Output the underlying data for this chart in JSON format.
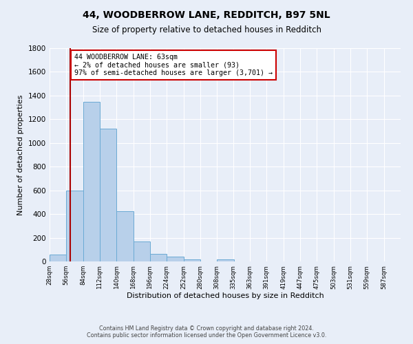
{
  "title": "44, WOODBERROW LANE, REDDITCH, B97 5NL",
  "subtitle": "Size of property relative to detached houses in Redditch",
  "xlabel": "Distribution of detached houses by size in Redditch",
  "ylabel": "Number of detached properties",
  "bin_labels": [
    "28sqm",
    "56sqm",
    "84sqm",
    "112sqm",
    "140sqm",
    "168sqm",
    "196sqm",
    "224sqm",
    "252sqm",
    "280sqm",
    "308sqm",
    "335sqm",
    "363sqm",
    "391sqm",
    "419sqm",
    "447sqm",
    "475sqm",
    "503sqm",
    "531sqm",
    "559sqm",
    "587sqm"
  ],
  "bin_edges": [
    28,
    56,
    84,
    112,
    140,
    168,
    196,
    224,
    252,
    280,
    308,
    335,
    363,
    391,
    419,
    447,
    475,
    503,
    531,
    559,
    587
  ],
  "bar_values": [
    60,
    600,
    1350,
    1120,
    425,
    170,
    65,
    40,
    20,
    0,
    20,
    0,
    0,
    0,
    0,
    0,
    0,
    0,
    0,
    0
  ],
  "bar_color": "#b8d0ea",
  "bar_edge_color": "#6aaad4",
  "property_size": 63,
  "vline_x": 63,
  "vline_color": "#aa0000",
  "annotation_text": "44 WOODBERROW LANE: 63sqm\n← 2% of detached houses are smaller (93)\n97% of semi-detached houses are larger (3,701) →",
  "annotation_box_edge": "#cc0000",
  "annotation_box_bg": "#ffffff",
  "ylim": [
    0,
    1800
  ],
  "yticks": [
    0,
    200,
    400,
    600,
    800,
    1000,
    1200,
    1400,
    1600,
    1800
  ],
  "bg_color": "#e8eef8",
  "grid_color": "#ffffff",
  "footer_line1": "Contains HM Land Registry data © Crown copyright and database right 2024.",
  "footer_line2": "Contains public sector information licensed under the Open Government Licence v3.0."
}
